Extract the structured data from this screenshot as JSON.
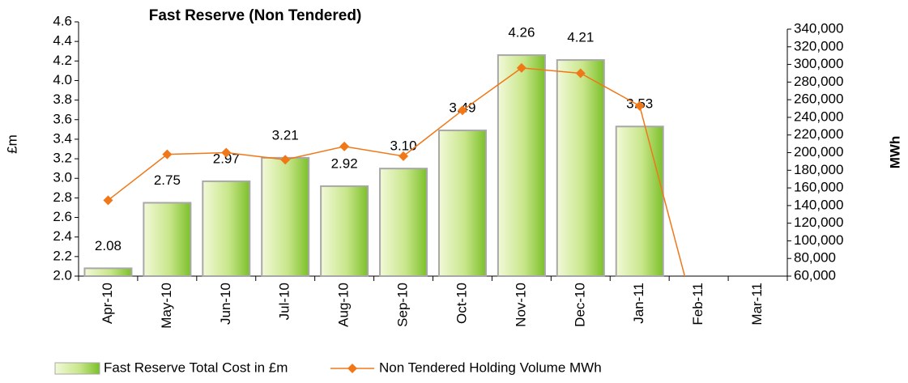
{
  "chart_data": {
    "type": "bar_line",
    "title": "Fast Reserve (Non Tendered)",
    "ylabel": "£m",
    "y2label": "MWh",
    "categories": [
      "Apr-10",
      "May-10",
      "Jun-10",
      "Jul-10",
      "Aug-10",
      "Sep-10",
      "Oct-10",
      "Nov-10",
      "Dec-10",
      "Jan-11",
      "Feb-11",
      "Mar-11"
    ],
    "series": [
      {
        "name": "Fast Reserve Total Cost in £m",
        "type": "bar",
        "color": "#8ccc3c",
        "values": [
          2.08,
          2.75,
          2.97,
          3.21,
          2.92,
          3.1,
          3.49,
          4.26,
          4.21,
          3.53,
          null,
          null
        ],
        "value_labels": [
          "2.08",
          "2.75",
          "2.97",
          "3.21",
          "2.92",
          "3.10",
          "3.49",
          "4.26",
          "4.21",
          "3.53",
          null,
          null
        ]
      },
      {
        "name": "Non Tendered Holding Volume MWh",
        "type": "line",
        "axis": "y2",
        "color": "#f07818",
        "values": [
          146000,
          198000,
          200000,
          192000,
          207000,
          196000,
          248000,
          296000,
          290000,
          253000,
          0,
          null
        ]
      }
    ],
    "ylim": [
      2.0,
      4.6
    ],
    "yticks": [
      {
        "value": 2.0,
        "label": "2.0"
      },
      2.2,
      2.4,
      2.6,
      2.8,
      {
        "value": 3.0,
        "label": "3.0"
      },
      3.2,
      3.4,
      3.6,
      3.8,
      {
        "value": 4.0,
        "label": "4.0"
      },
      4.2,
      4.4,
      4.6
    ],
    "y2lim": [
      60000,
      340000
    ],
    "y2ticks": [
      {
        "value": 60000,
        "label": "60,000"
      },
      {
        "value": 80000,
        "label": "80,000"
      },
      {
        "value": 100000,
        "label": "100,000"
      },
      {
        "value": 120000,
        "label": "120,000"
      },
      {
        "value": 140000,
        "label": "140,000"
      },
      {
        "value": 160000,
        "label": "160,000"
      },
      {
        "value": 180000,
        "label": "180,000"
      },
      {
        "value": 200000,
        "label": "200,000"
      },
      {
        "value": 220000,
        "label": "220,000"
      },
      {
        "value": 240000,
        "label": "240,000"
      },
      {
        "value": 260000,
        "label": "260,000"
      },
      {
        "value": 280000,
        "label": "280,000"
      },
      {
        "value": 300000,
        "label": "300,000"
      },
      {
        "value": 320000,
        "label": "320,000"
      },
      {
        "value": 340000,
        "label": "340,000"
      }
    ],
    "legend": "bottom"
  }
}
